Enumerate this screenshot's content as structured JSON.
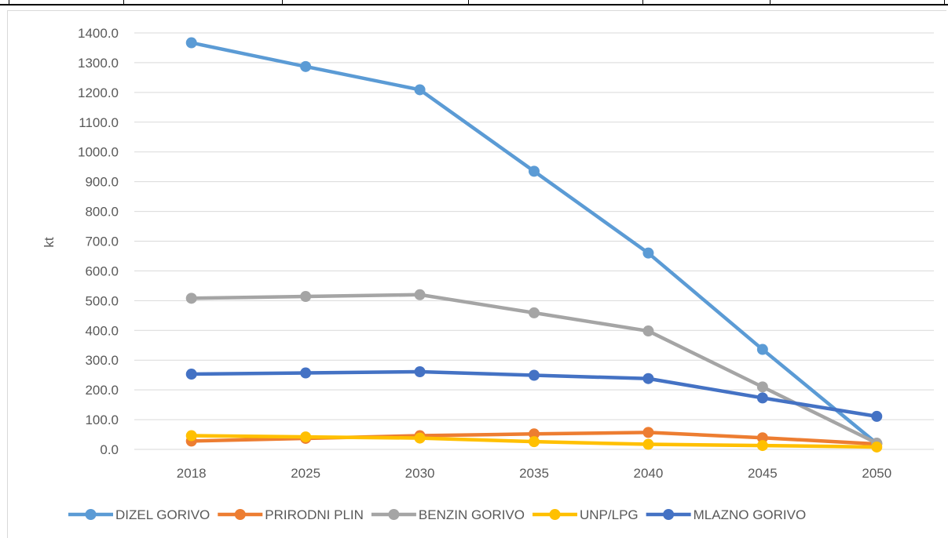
{
  "chart_data": {
    "type": "line",
    "title": "",
    "xlabel": "",
    "ylabel": "kt",
    "ylim": [
      0,
      1400
    ],
    "yticks": [
      "0.0",
      "100.0",
      "200.0",
      "300.0",
      "400.0",
      "500.0",
      "600.0",
      "700.0",
      "800.0",
      "900.0",
      "1000.0",
      "1100.0",
      "1200.0",
      "1300.0",
      "1400.0"
    ],
    "categories": [
      "2018",
      "2025",
      "2030",
      "2035",
      "2040",
      "2045",
      "2050"
    ],
    "grid": true,
    "legend": "bottom",
    "series": [
      {
        "name": "DIZEL GORIVO",
        "color": "#5b9bd5",
        "values": [
          1367,
          1287,
          1209,
          935,
          660,
          336,
          20
        ]
      },
      {
        "name": "PRIRODNI PLIN",
        "color": "#ed7d31",
        "values": [
          28,
          37,
          46,
          52,
          57,
          39,
          18
        ]
      },
      {
        "name": "BENZIN GORIVO",
        "color": "#a5a5a5",
        "values": [
          508,
          514,
          520,
          459,
          398,
          210,
          21
        ]
      },
      {
        "name": "UNP/LPG",
        "color": "#ffc000",
        "values": [
          46,
          42,
          38,
          26,
          17,
          13,
          8
        ]
      },
      {
        "name": "MLAZNO GORIVO",
        "color": "#4472c4",
        "values": [
          253,
          257,
          261,
          249,
          238,
          173,
          111
        ]
      }
    ]
  }
}
